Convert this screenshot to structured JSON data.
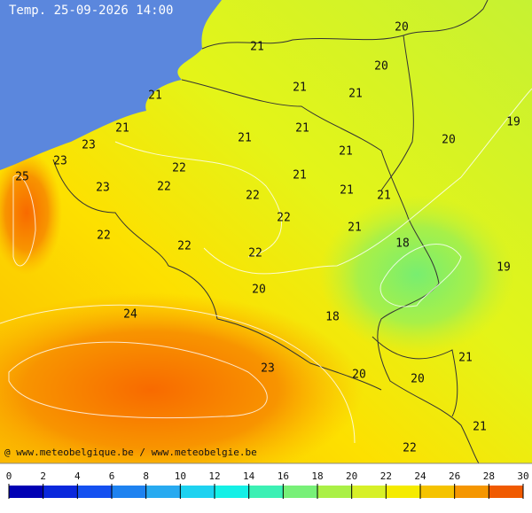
{
  "title": "Temp. 25-09-2026 14:00",
  "credit": "@ www.meteobelgique.be / www.meteobelgie.be",
  "labels": [
    21,
    20,
    20,
    21,
    21,
    21,
    21,
    21,
    21,
    21,
    20,
    19,
    23,
    23,
    25,
    22,
    23,
    22,
    21,
    21,
    22,
    21,
    22,
    22,
    22,
    22,
    21,
    18,
    19,
    20,
    24,
    18,
    23,
    20,
    20,
    21,
    21,
    22
  ],
  "legend": {
    "ticks": [
      0,
      2,
      4,
      6,
      8,
      10,
      12,
      14,
      16,
      18,
      20,
      22,
      24,
      26,
      28,
      30
    ],
    "colors": [
      "#0000b4",
      "#0a28dc",
      "#1450f0",
      "#1e82f0",
      "#28aaf0",
      "#1ed2f0",
      "#14f0e6",
      "#3cf0b4",
      "#78f078",
      "#aaf046",
      "#d7f028",
      "#f5eb00",
      "#f5c300",
      "#f59600",
      "#f05a00"
    ]
  }
}
